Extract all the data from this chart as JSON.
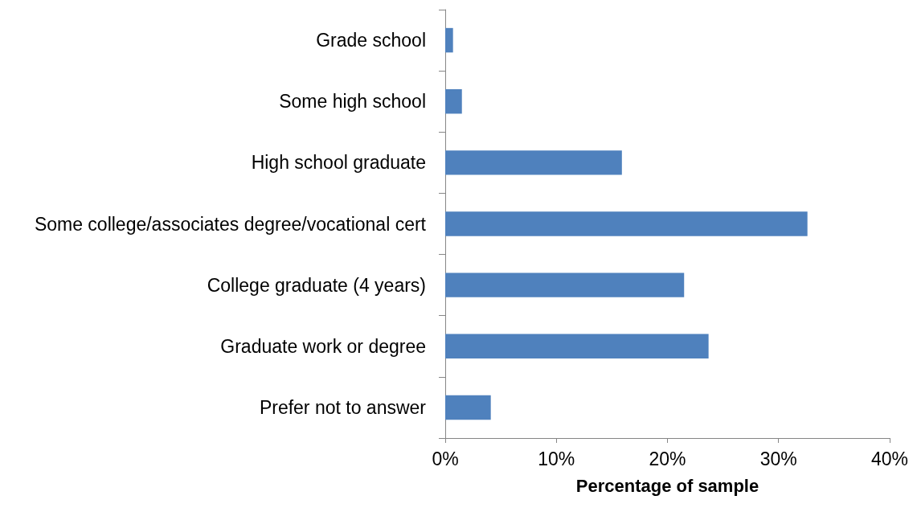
{
  "chart_data": {
    "type": "bar",
    "orientation": "horizontal",
    "xlabel": "Percentage of sample",
    "categories": [
      "Grade school",
      "Some high school",
      "High school graduate",
      "Some college/associates degree/vocational cert",
      "College graduate (4 years)",
      "Graduate work or degree",
      "Prefer not to answer"
    ],
    "values": [
      0.7,
      1.5,
      15.9,
      32.6,
      21.5,
      23.7,
      4.1
    ],
    "color": "#4f81bd",
    "xlim": [
      0,
      40
    ],
    "xticks": [
      {
        "value": 0,
        "label": "0%"
      },
      {
        "value": 10,
        "label": "10%"
      },
      {
        "value": 20,
        "label": "20%"
      },
      {
        "value": 30,
        "label": "30%"
      },
      {
        "value": 40,
        "label": "40%"
      }
    ],
    "grid": false
  }
}
